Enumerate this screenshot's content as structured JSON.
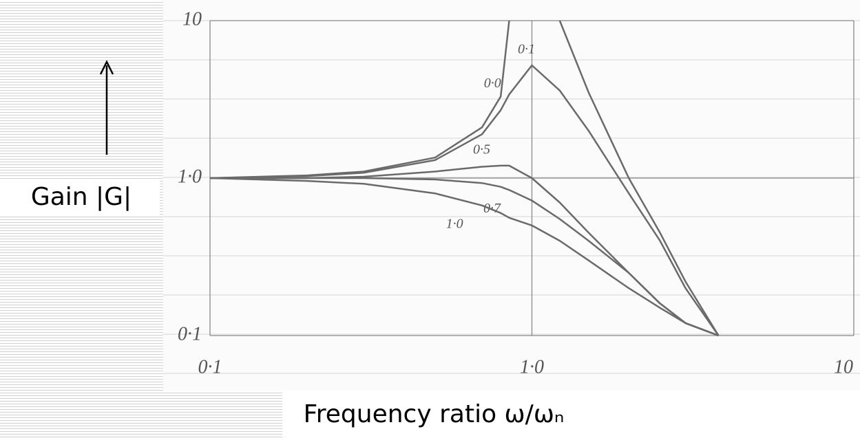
{
  "chart_data": {
    "type": "line",
    "x_label": "Frequency ratio ω/ωₙ",
    "y_label": "Gain |G|",
    "x": [
      0.1,
      0.2,
      0.3,
      0.5,
      0.7,
      0.8,
      0.85,
      1.0,
      1.22,
      1.5,
      2,
      2.5,
      3,
      3.8
    ],
    "series": [
      {
        "name": "0·0",
        "color": "#6a6a6a",
        "values": [
          1,
          1.04,
          1.1,
          1.35,
          2.1,
          3.3,
          10,
          null,
          10,
          3.5,
          1.0,
          0.45,
          0.22,
          0.1
        ]
      },
      {
        "name": "0·1",
        "color": "#6a6a6a",
        "values": [
          1,
          1.03,
          1.08,
          1.3,
          1.9,
          2.7,
          3.4,
          5.2,
          3.6,
          2.0,
          0.8,
          0.4,
          0.2,
          0.1
        ]
      },
      {
        "name": "0·5",
        "color": "#6a6a6a",
        "values": [
          1,
          1,
          1.02,
          1.1,
          1.18,
          1.2,
          1.2,
          1.0,
          0.7,
          0.45,
          0.25,
          0.16,
          0.12,
          0.1
        ]
      },
      {
        "name": "0·7",
        "color": "#6a6a6a",
        "values": [
          1,
          1,
          1,
          0.98,
          0.93,
          0.88,
          0.84,
          0.72,
          0.55,
          0.4,
          0.25,
          0.16,
          0.12,
          0.1
        ]
      },
      {
        "name": "1·0",
        "color": "#6a6a6a",
        "values": [
          1,
          0.96,
          0.92,
          0.8,
          0.67,
          0.6,
          0.56,
          0.5,
          0.4,
          0.3,
          0.2,
          0.15,
          0.12,
          0.1
        ]
      }
    ],
    "xscale": "log",
    "yscale": "log",
    "xlim": [
      0.1,
      10
    ],
    "ylim": [
      0.1,
      10
    ],
    "xticks": [
      {
        "value": 0.1,
        "label": "0·1"
      },
      {
        "value": 1,
        "label": "1·0"
      },
      10
    ],
    "yticks": [
      {
        "value": 0.1,
        "label": "0·1"
      },
      {
        "value": 1,
        "label": "1·0"
      },
      10
    ],
    "grid": true
  }
}
